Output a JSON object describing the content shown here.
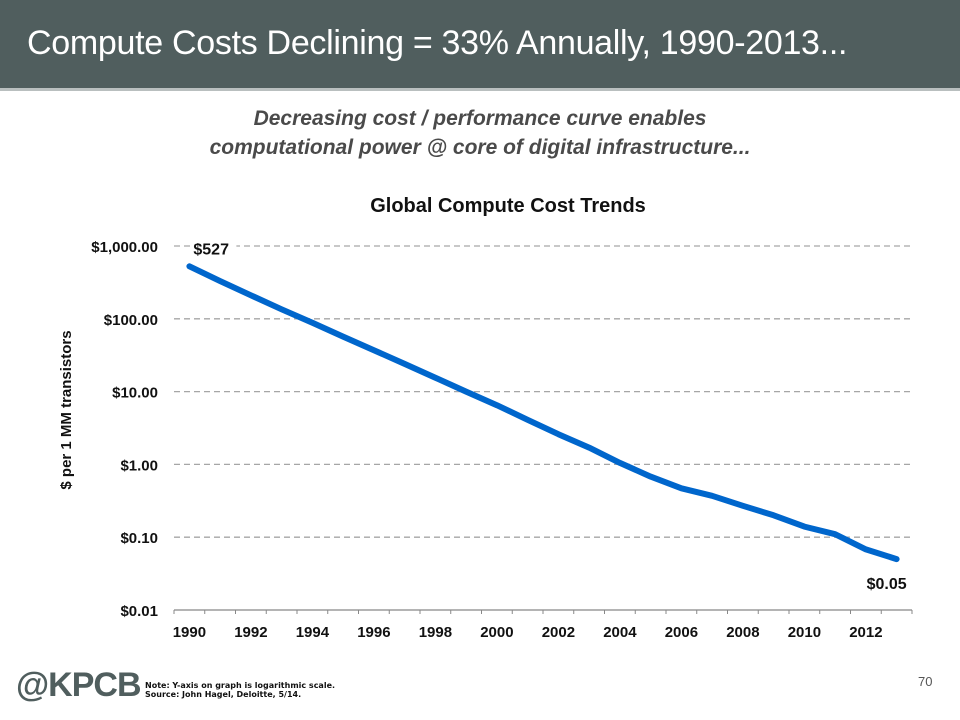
{
  "header": {
    "title": "Compute Costs Declining = 33% Annually, 1990-2013..."
  },
  "subtitle": {
    "line1": "Decreasing cost / performance curve enables",
    "line2": "computational power @ core of digital infrastructure..."
  },
  "footer": {
    "logo": "@KPCB",
    "note": "Note: Y-axis on graph is logarithmic scale.",
    "source": "Source: John Hagel, Deloitte, 5/14.",
    "page_number": "70"
  },
  "colors": {
    "header_bg": "#505e5e",
    "line": "#0066cc",
    "grid": "#a6a6a6"
  },
  "chart_data": {
    "type": "line",
    "title": "Global Compute Cost Trends",
    "xlabel": "",
    "ylabel": "$ per 1 MM transistors",
    "yscale": "log",
    "ylim": [
      0.01,
      1000
    ],
    "grid": true,
    "legend": "none",
    "y_ticks": [
      1000,
      100,
      10,
      1,
      0.1,
      0.01
    ],
    "y_tick_labels": [
      "$1,000.00",
      "$100.00",
      "$10.00",
      "$1.00",
      "$0.10",
      "$0.01"
    ],
    "x": [
      1990,
      1991,
      1992,
      1993,
      1994,
      1995,
      1996,
      1997,
      1998,
      1999,
      2000,
      2001,
      2002,
      2003,
      2004,
      2005,
      2006,
      2007,
      2008,
      2009,
      2010,
      2011,
      2012,
      2013
    ],
    "x_tick_labels": [
      "1990",
      "1992",
      "1994",
      "1996",
      "1998",
      "2000",
      "2002",
      "2004",
      "2006",
      "2008",
      "2010",
      "2012"
    ],
    "series": [
      {
        "name": "Cost per 1MM transistors",
        "values": [
          527,
          330,
          210,
          135,
          88,
          57,
          37,
          24,
          15.5,
          10,
          6.5,
          4.1,
          2.6,
          1.7,
          1.05,
          0.68,
          0.47,
          0.37,
          0.27,
          0.2,
          0.14,
          0.11,
          0.068,
          0.05
        ]
      }
    ],
    "annotations": [
      {
        "x": 1990,
        "label": "$527"
      },
      {
        "x": 2013,
        "label": "$0.05"
      }
    ]
  }
}
